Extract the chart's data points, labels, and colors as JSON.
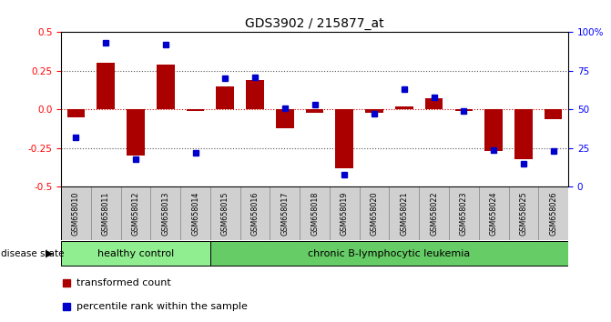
{
  "title": "GDS3902 / 215877_at",
  "samples": [
    "GSM658010",
    "GSM658011",
    "GSM658012",
    "GSM658013",
    "GSM658014",
    "GSM658015",
    "GSM658016",
    "GSM658017",
    "GSM658018",
    "GSM658019",
    "GSM658020",
    "GSM658021",
    "GSM658022",
    "GSM658023",
    "GSM658024",
    "GSM658025",
    "GSM658026"
  ],
  "bar_values": [
    -0.05,
    0.3,
    -0.3,
    0.29,
    -0.01,
    0.15,
    0.19,
    -0.12,
    -0.02,
    -0.38,
    -0.02,
    0.02,
    0.07,
    -0.01,
    -0.27,
    -0.32,
    -0.06
  ],
  "dot_values": [
    32,
    93,
    18,
    92,
    22,
    70,
    71,
    51,
    53,
    8,
    47,
    63,
    58,
    49,
    24,
    15,
    23
  ],
  "healthy_count": 5,
  "bar_color": "#aa0000",
  "dot_color": "#0000cc",
  "ylim_left": [
    -0.5,
    0.5
  ],
  "ylim_right": [
    0,
    100
  ],
  "yticks_left": [
    -0.5,
    -0.25,
    0.0,
    0.25,
    0.5
  ],
  "yticks_right": [
    0,
    25,
    50,
    75,
    100
  ],
  "ytick_labels_right": [
    "0",
    "25",
    "50",
    "75",
    "100%"
  ],
  "healthy_color": "#90ee90",
  "leukemia_color": "#66cc66",
  "legend_items": [
    "transformed count",
    "percentile rank within the sample"
  ],
  "hline_color": "#cc0000",
  "dotted_color": "#555555",
  "bar_width": 0.6,
  "label_box_color": "#d0d0d0"
}
